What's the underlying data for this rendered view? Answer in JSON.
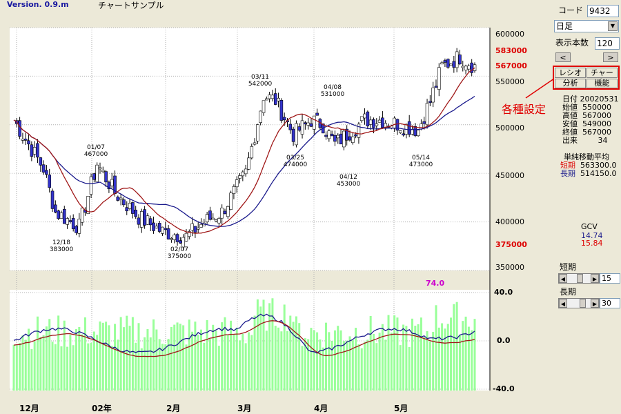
{
  "header": {
    "version": "Version. 0.9.m",
    "title": "チャートサンプル"
  },
  "controls": {
    "code_label": "コード",
    "code_value": "9432",
    "period_select": "日足",
    "count_label": "表示本数",
    "count_value": "120",
    "left_arrow": "<",
    "right_arrow": ">",
    "buttons": [
      "レシオ",
      "チャート",
      "分析",
      "機能"
    ],
    "callout": "各種設定"
  },
  "info": {
    "rows": [
      {
        "label": "日付",
        "value": "20020531"
      },
      {
        "label": "始値",
        "value": "550000"
      },
      {
        "label": "高値",
        "value": "567000"
      },
      {
        "label": "安値",
        "value": "549000"
      },
      {
        "label": "終値",
        "value": "567000"
      },
      {
        "label": "出来",
        "value": "34"
      }
    ],
    "ma_title": "単純移動平均",
    "short_label": "短期",
    "short_value": "563300.0",
    "long_label": "長期",
    "long_value": "514150.0",
    "gcv_label": "GCV",
    "gcv_value1": "14.74",
    "gcv_value2": "15.84"
  },
  "sliders": {
    "short_label": "短期",
    "short_value": "15",
    "long_label": "長期",
    "long_value": "30"
  },
  "price_axis": {
    "ticks": [
      "600000",
      "550000",
      "500000",
      "450000",
      "400000",
      "350000"
    ],
    "red_labels": [
      "583000",
      "567000",
      "375000"
    ]
  },
  "indicator_axis": {
    "ticks": [
      "40.0",
      "0.0",
      "-40.0"
    ],
    "peak_label": "74.0"
  },
  "months": [
    "12月",
    "02年",
    "2月",
    "3月",
    "4月",
    "5月"
  ],
  "annotations": [
    {
      "date": "12/18",
      "price": "383000"
    },
    {
      "date": "01/07",
      "price": "467000"
    },
    {
      "date": "02/07",
      "price": "375000"
    },
    {
      "date": "03/11",
      "price": "542000"
    },
    {
      "date": "03/25",
      "price": "474000"
    },
    {
      "date": "04/08",
      "price": "531000"
    },
    {
      "date": "04/12",
      "price": "453000"
    },
    {
      "date": "05/14",
      "price": "473000"
    }
  ],
  "colors": {
    "bg": "#ece9d8",
    "up_candle": "#ffffff",
    "down_candle": "#3333cc",
    "short_ma": "#a01818",
    "long_ma": "#1a1a8c",
    "volume": "#99ff99",
    "accent_red": "#dd0000",
    "magenta": "#cc00cc"
  }
}
